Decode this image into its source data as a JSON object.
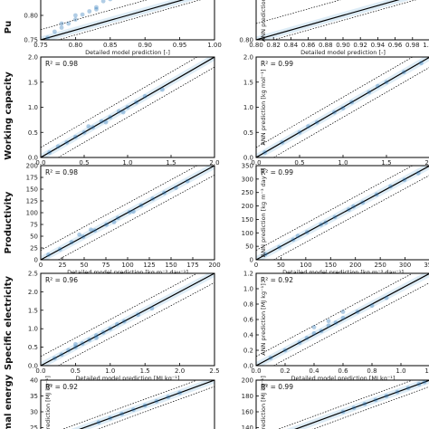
{
  "figure": {
    "row_labels": [
      "Pu",
      "Working capacity",
      "Productivity",
      "Specific electricity",
      "rmal energy"
    ]
  },
  "chart_data": [
    {
      "id": "purity-left",
      "type": "scatter",
      "title": "",
      "xlabel": "Detailed model prediction [-]",
      "ylabel": "",
      "xlim": [
        0.75,
        1.0
      ],
      "ylim": [
        0.75,
        0.87
      ],
      "xticks": [
        "0.75",
        "0.80",
        "0.85",
        "0.90",
        "0.95",
        "1.00"
      ],
      "yticks": [
        "0.75",
        "0.80",
        "0.85"
      ],
      "r2": "",
      "series": [
        {
          "x": [
            0.76,
            0.77,
            0.78,
            0.79,
            0.8,
            0.81,
            0.82,
            0.83,
            0.84,
            0.85,
            0.86,
            0.8,
            0.83,
            0.78
          ],
          "y": [
            0.755,
            0.77,
            0.78,
            0.79,
            0.8,
            0.812,
            0.82,
            0.83,
            0.845,
            0.85,
            0.86,
            0.81,
            0.825,
            0.79
          ]
        }
      ]
    },
    {
      "id": "purity-right",
      "type": "scatter",
      "title": "",
      "xlabel": "Detailed model prediction [-]",
      "ylabel": "ANN prediction [-]",
      "xlim": [
        0.8,
        1.0
      ],
      "ylim": [
        0.8,
        0.86
      ],
      "xticks": [
        "0.80",
        "0.82",
        "0.84",
        "0.86",
        "0.88",
        "0.90",
        "0.92",
        "0.94",
        "0.96",
        "0.98",
        "1.00"
      ],
      "yticks": [
        "0.80"
      ],
      "r2": "",
      "series": [
        {
          "x": [],
          "y": []
        }
      ]
    },
    {
      "id": "working-capacity-left",
      "type": "scatter",
      "title": "",
      "xlabel": "Detailed model prediction [kg mol⁻¹]",
      "ylabel": "",
      "xlim": [
        0.0,
        2.0
      ],
      "ylim": [
        0.0,
        2.0
      ],
      "xticks": [
        "0.0",
        "0.5",
        "1.0",
        "1.5",
        "2.0"
      ],
      "yticks": [
        "0.0",
        "0.5",
        "1.0",
        "1.5",
        "2.0"
      ],
      "r2": "R² = 0.98",
      "series": [
        {
          "x": [
            0.1,
            0.2,
            0.3,
            0.4,
            0.5,
            0.6,
            0.7,
            0.8,
            0.9,
            1.0,
            1.1,
            1.2,
            1.4,
            0.55,
            0.75,
            0.95
          ],
          "y": [
            0.1,
            0.22,
            0.3,
            0.41,
            0.5,
            0.6,
            0.72,
            0.8,
            0.92,
            1.0,
            1.1,
            1.22,
            1.35,
            0.62,
            0.7,
            0.9
          ]
        }
      ]
    },
    {
      "id": "working-capacity-right",
      "type": "scatter",
      "title": "",
      "xlabel": "Detailed model prediction [kg mol⁻¹]",
      "ylabel": "ANN prediction [kg mol⁻¹]",
      "xlim": [
        0.0,
        2.0
      ],
      "ylim": [
        0.0,
        2.0
      ],
      "xticks": [
        "0.0",
        "0.5",
        "1.0",
        "1.5",
        "2.0"
      ],
      "yticks": [
        "0.0",
        "0.5",
        "1.0",
        "1.5",
        "2.0"
      ],
      "r2": "R² = 0.99",
      "series": [
        {
          "x": [
            0.1,
            0.3,
            0.5,
            0.7,
            0.9,
            1.1,
            1.3,
            1.5,
            1.7,
            1.9,
            0.6,
            1.0,
            1.4
          ],
          "y": [
            0.1,
            0.3,
            0.5,
            0.7,
            0.9,
            1.1,
            1.3,
            1.5,
            1.7,
            1.88,
            0.62,
            0.98,
            1.42
          ]
        }
      ]
    },
    {
      "id": "productivity-left",
      "type": "scatter",
      "title": "",
      "xlabel": "Detailed model prediction [kg m⁻³ day⁻¹]",
      "ylabel": "",
      "xlim": [
        0,
        225
      ],
      "ylim": [
        0,
        225
      ],
      "xticks": [
        "0",
        "25",
        "50",
        "75",
        "100",
        "125",
        "150",
        "175",
        "200"
      ],
      "yticks": [
        "0",
        "25",
        "50",
        "75",
        "100",
        "125",
        "150",
        "175",
        "200"
      ],
      "r2": "R² = 0.98",
      "series": [
        {
          "x": [
            10,
            25,
            40,
            55,
            70,
            85,
            100,
            115,
            130,
            145,
            160,
            175,
            190,
            50,
            65,
            95,
            120
          ],
          "y": [
            12,
            25,
            42,
            55,
            70,
            84,
            100,
            114,
            130,
            146,
            160,
            172,
            188,
            60,
            72,
            90,
            115
          ]
        }
      ]
    },
    {
      "id": "productivity-right",
      "type": "scatter",
      "title": "",
      "xlabel": "Detailed model prediction [kg m⁻³ day⁻¹]",
      "ylabel": "ANN prediction [kg m⁻³ day⁻¹]",
      "xlim": [
        0,
        375
      ],
      "ylim": [
        0,
        375
      ],
      "xticks": [
        "0",
        "50",
        "100",
        "150",
        "200",
        "250",
        "300",
        "350"
      ],
      "yticks": [
        "0",
        "50",
        "100",
        "150",
        "200",
        "250",
        "300",
        "350"
      ],
      "r2": "R² = 0.99",
      "series": [
        {
          "x": [
            20,
            50,
            80,
            110,
            140,
            170,
            200,
            230,
            260,
            290,
            320,
            350,
            90,
            150,
            210
          ],
          "y": [
            22,
            50,
            80,
            110,
            140,
            170,
            200,
            228,
            260,
            292,
            318,
            345,
            95,
            148,
            212
          ]
        }
      ]
    },
    {
      "id": "specific-electricity-left",
      "type": "scatter",
      "title": "",
      "xlabel": "Detailed model prediction [MJ kg⁻¹]",
      "ylabel": "",
      "xlim": [
        0.0,
        2.5
      ],
      "ylim": [
        0.0,
        2.5
      ],
      "xticks": [
        "0.0",
        "0.5",
        "1.0",
        "1.5",
        "2.0",
        "2.5"
      ],
      "yticks": [
        "0.0",
        "0.5",
        "1.0",
        "1.5",
        "2.0",
        "2.5"
      ],
      "r2": "R² = 0.96",
      "series": [
        {
          "x": [
            0.2,
            0.3,
            0.4,
            0.5,
            0.6,
            0.7,
            0.8,
            0.9,
            1.0,
            1.1,
            1.2,
            1.4,
            1.6,
            0.5,
            0.8
          ],
          "y": [
            0.2,
            0.3,
            0.42,
            0.5,
            0.6,
            0.7,
            0.82,
            0.9,
            1.0,
            1.12,
            1.2,
            1.38,
            1.55,
            0.58,
            0.75
          ]
        }
      ]
    },
    {
      "id": "specific-electricity-right",
      "type": "scatter",
      "title": "",
      "xlabel": "Detailed model prediction [MJ kg⁻¹]",
      "ylabel": "ANN prediction [MJ kg⁻¹]",
      "xlim": [
        0.0,
        1.2
      ],
      "ylim": [
        0.0,
        1.2
      ],
      "xticks": [
        "0.0",
        "0.2",
        "0.4",
        "0.6",
        "0.8",
        "1.0",
        "1.2"
      ],
      "yticks": [
        "0.0",
        "0.2",
        "0.4",
        "0.6",
        "0.8",
        "1.0",
        "1.2"
      ],
      "r2": "R² = 0.92",
      "series": [
        {
          "x": [
            0.1,
            0.2,
            0.3,
            0.35,
            0.4,
            0.45,
            0.5,
            0.55,
            0.6,
            0.7,
            0.8,
            0.9,
            0.4,
            0.5,
            0.6
          ],
          "y": [
            0.1,
            0.2,
            0.3,
            0.36,
            0.42,
            0.45,
            0.52,
            0.56,
            0.62,
            0.7,
            0.78,
            0.88,
            0.5,
            0.58,
            0.7
          ]
        }
      ]
    },
    {
      "id": "thermal-energy-left",
      "type": "scatter",
      "title": "",
      "xlabel": "",
      "ylabel": "ANN prediction [MJ kg⁻¹]",
      "xlim": [
        10,
        40
      ],
      "ylim": [
        10,
        40
      ],
      "xticks": [],
      "yticks": [
        "20",
        "25",
        "30",
        "35",
        "40"
      ],
      "r2": "R² = 0.92",
      "series": [
        {
          "x": [
            20,
            22,
            24,
            26,
            28,
            30,
            32,
            34
          ],
          "y": [
            20,
            22,
            24,
            26,
            28,
            30,
            32,
            34
          ]
        }
      ]
    },
    {
      "id": "thermal-energy-right",
      "type": "scatter",
      "title": "",
      "xlabel": "",
      "ylabel": "ANN prediction [MJ kg⁻¹]",
      "xlim": [
        40,
        200
      ],
      "ylim": [
        40,
        200
      ],
      "xticks": [],
      "yticks": [
        "120",
        "140",
        "160",
        "180",
        "200"
      ],
      "r2": "R² = 0.99",
      "series": [
        {
          "x": [
            120,
            130,
            140,
            150,
            160,
            170,
            180,
            190,
            195
          ],
          "y": [
            120,
            130,
            140,
            150,
            160,
            170,
            180,
            190,
            195
          ]
        }
      ]
    }
  ]
}
